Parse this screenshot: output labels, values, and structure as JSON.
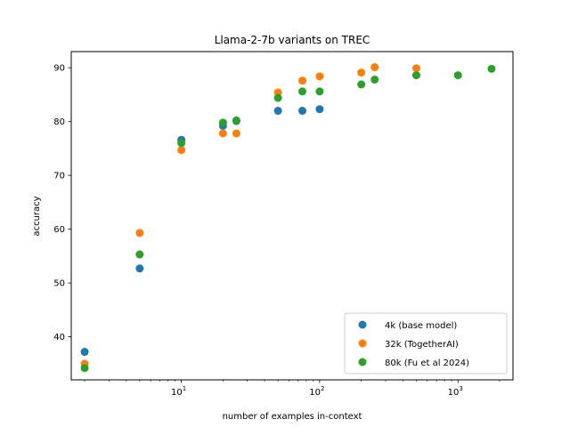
{
  "chart_data": {
    "type": "scatter",
    "title": "Llama-2-7b variants on TREC",
    "xlabel": "number of examples in-context",
    "ylabel": "accuracy",
    "xscale": "log",
    "xlim": [
      1.6,
      2500
    ],
    "ylim": [
      32,
      93
    ],
    "xticks": [
      {
        "value": 10,
        "label": "10",
        "exp": "1"
      },
      {
        "value": 100,
        "label": "10",
        "exp": "2"
      },
      {
        "value": 1000,
        "label": "10",
        "exp": "3"
      }
    ],
    "yticks": [
      40,
      50,
      60,
      70,
      80,
      90
    ],
    "legend_position": "lower-right",
    "grid": false,
    "series": [
      {
        "name": "4k (base model)",
        "color": "#1f77b4",
        "points": [
          [
            2,
            37.2
          ],
          [
            5,
            52.7
          ],
          [
            10,
            76.6
          ],
          [
            20,
            79.2
          ],
          [
            25,
            80.1
          ],
          [
            50,
            82.0
          ],
          [
            75,
            82.0
          ],
          [
            100,
            82.3
          ]
        ]
      },
      {
        "name": "32k (TogetherAI)",
        "color": "#ff7f0e",
        "points": [
          [
            2,
            35.0
          ],
          [
            5,
            59.3
          ],
          [
            10,
            74.7
          ],
          [
            20,
            77.8
          ],
          [
            25,
            77.8
          ],
          [
            50,
            85.4
          ],
          [
            75,
            87.6
          ],
          [
            100,
            88.4
          ],
          [
            200,
            89.1
          ],
          [
            250,
            90.1
          ],
          [
            500,
            89.9
          ]
        ]
      },
      {
        "name": "80k (Fu et al 2024)",
        "color": "#2ca02c",
        "points": [
          [
            2,
            34.2
          ],
          [
            5,
            55.3
          ],
          [
            10,
            76.0
          ],
          [
            20,
            79.8
          ],
          [
            25,
            80.2
          ],
          [
            50,
            84.4
          ],
          [
            75,
            85.6
          ],
          [
            100,
            85.6
          ],
          [
            200,
            86.9
          ],
          [
            250,
            87.8
          ],
          [
            500,
            88.6
          ],
          [
            1000,
            88.6
          ],
          [
            1750,
            89.8
          ]
        ]
      }
    ]
  }
}
